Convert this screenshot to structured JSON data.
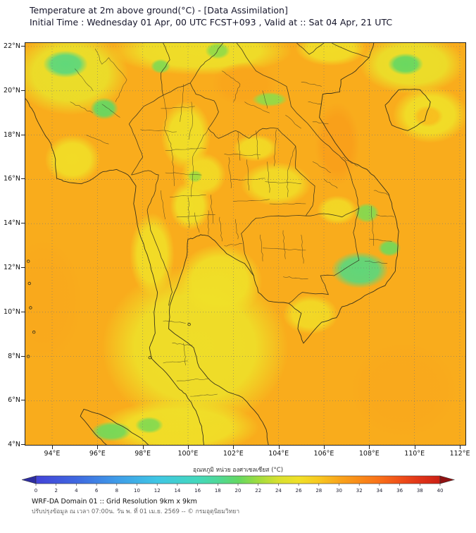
{
  "header": {
    "line1": "Temperature at 2m above ground(°C) - [Data Assimilation]",
    "line2": "Initial Time : Wednesday 01 Apr, 00 UTC FCST+093 , Valid at :: Sat 04 Apr, 21 UTC"
  },
  "axes": {
    "lat_ticks": [
      {
        "label": "22°N",
        "value": 22
      },
      {
        "label": "20°N",
        "value": 20
      },
      {
        "label": "18°N",
        "value": 18
      },
      {
        "label": "16°N",
        "value": 16
      },
      {
        "label": "14°N",
        "value": 14
      },
      {
        "label": "12°N",
        "value": 12
      },
      {
        "label": "10°N",
        "value": 10
      },
      {
        "label": "8°N",
        "value": 8
      },
      {
        "label": "6°N",
        "value": 6
      },
      {
        "label": "4°N",
        "value": 4
      }
    ],
    "lon_ticks": [
      {
        "label": "94°E",
        "value": 94
      },
      {
        "label": "96°E",
        "value": 96
      },
      {
        "label": "98°E",
        "value": 98
      },
      {
        "label": "100°E",
        "value": 100
      },
      {
        "label": "102°E",
        "value": 102
      },
      {
        "label": "104°E",
        "value": 104
      },
      {
        "label": "106°E",
        "value": 106
      },
      {
        "label": "108°E",
        "value": 108
      },
      {
        "label": "110°E",
        "value": 110
      },
      {
        "label": "112°E",
        "value": 112
      }
    ]
  },
  "colorbar": {
    "label": "อุณหภูมิ หน่วย องศาเซลเซียส (°C)",
    "min": 0,
    "max": 40,
    "ticks": [
      0,
      2,
      4,
      6,
      8,
      10,
      12,
      14,
      16,
      18,
      20,
      22,
      24,
      26,
      28,
      30,
      32,
      34,
      36,
      38,
      40
    ],
    "arrow_left_color": "#2e2ea0",
    "arrow_right_color": "#8f1212",
    "stops": [
      {
        "v": 0,
        "c": "#4343d8"
      },
      {
        "v": 4,
        "c": "#3f68e0"
      },
      {
        "v": 8,
        "c": "#3f9ce8"
      },
      {
        "v": 12,
        "c": "#3fc6e4"
      },
      {
        "v": 16,
        "c": "#44d8bc"
      },
      {
        "v": 18,
        "c": "#4fd898"
      },
      {
        "v": 20,
        "c": "#63d863"
      },
      {
        "v": 22,
        "c": "#a0dc3f"
      },
      {
        "v": 24,
        "c": "#d8e030"
      },
      {
        "v": 26,
        "c": "#f0e028"
      },
      {
        "v": 28,
        "c": "#f8c820"
      },
      {
        "v": 30,
        "c": "#f9a51b"
      },
      {
        "v": 32,
        "c": "#f98b18"
      },
      {
        "v": 34,
        "c": "#f97018"
      },
      {
        "v": 36,
        "c": "#f05018"
      },
      {
        "v": 38,
        "c": "#e03418"
      },
      {
        "v": 40,
        "c": "#cc2015"
      }
    ]
  },
  "footer": {
    "line1": "WRF-DA Domain 01 :: Grid Resolution 9km x 9km",
    "line2": "ปรับปรุงข้อมูล ณ เวลา 07:00น. วัน พ. ที่ 01 เม.ย. 2569 -- © กรมอุตุนิยมวิทยา"
  },
  "chart_data": {
    "type": "heatmap",
    "title": "Temperature at 2m above ground(°C) - [Data Assimilation]",
    "subtitle": "Initial Time : Wednesday 01 Apr, 00 UTC FCST+093 , Valid at :: Sat 04 Apr, 21 UTC",
    "x_axis": {
      "label_format": "°E",
      "ticks": [
        94,
        96,
        98,
        100,
        102,
        104,
        106,
        108,
        110,
        112
      ],
      "range": [
        92.82,
        112.25
      ]
    },
    "y_axis": {
      "label_format": "°N",
      "ticks": [
        4,
        6,
        8,
        10,
        12,
        14,
        16,
        18,
        20,
        22
      ],
      "range": [
        4.0,
        22.16
      ]
    },
    "colorbar_label": "อุณหภูมิ หน่วย องศาเซลเซียส (°C)",
    "temperature_scale_c": {
      "min": 0,
      "max": 40,
      "tick_step": 2
    },
    "base_field_temp_c": 29.6,
    "features": [
      {
        "lon": 94.6,
        "lat": 21.2,
        "rx": 0.9,
        "ry": 0.55,
        "t": 19
      },
      {
        "lon": 96.3,
        "lat": 19.2,
        "rx": 0.55,
        "ry": 0.45,
        "t": 20
      },
      {
        "lon": 98.8,
        "lat": 21.1,
        "rx": 0.4,
        "ry": 0.3,
        "t": 21
      },
      {
        "lon": 101.3,
        "lat": 21.8,
        "rx": 0.5,
        "ry": 0.35,
        "t": 21.5
      },
      {
        "lon": 103.6,
        "lat": 19.6,
        "rx": 0.7,
        "ry": 0.3,
        "t": 21.5
      },
      {
        "lon": 109.6,
        "lat": 21.2,
        "rx": 0.7,
        "ry": 0.45,
        "t": 20
      },
      {
        "lon": 100.3,
        "lat": 16.15,
        "rx": 0.3,
        "ry": 0.25,
        "t": 22
      },
      {
        "lon": 107.6,
        "lat": 11.9,
        "rx": 1.15,
        "ry": 0.75,
        "t": 19
      },
      {
        "lon": 107.9,
        "lat": 14.5,
        "rx": 0.5,
        "ry": 0.4,
        "t": 21
      },
      {
        "lon": 108.9,
        "lat": 12.9,
        "rx": 0.45,
        "ry": 0.35,
        "t": 20.5
      },
      {
        "lon": 96.6,
        "lat": 4.6,
        "rx": 0.8,
        "ry": 0.4,
        "t": 20.5
      },
      {
        "lon": 98.3,
        "lat": 4.9,
        "rx": 0.55,
        "ry": 0.35,
        "t": 21
      },
      {
        "lon": 106.6,
        "lat": 17.6,
        "rx": 0.9,
        "ry": 1.7,
        "t": 30.5
      },
      {
        "lon": 110.6,
        "lat": 18.85,
        "rx": 0.6,
        "ry": 0.45,
        "t": 28.6
      },
      {
        "lon": 93.6,
        "lat": 10.5,
        "rx": 1.6,
        "ry": 2.6,
        "t": 29.8
      },
      {
        "lon": 109.5,
        "lat": 6.5,
        "rx": 2.2,
        "ry": 2.0,
        "t": 29.8
      },
      {
        "lon": 102.5,
        "lat": 20.3,
        "rx": 1.3,
        "ry": 0.9,
        "t": 30.0
      },
      {
        "lon": 94.8,
        "lat": 20.8,
        "rx": 2.3,
        "ry": 1.7,
        "t": 25.5
      },
      {
        "lon": 100.6,
        "lat": 21.8,
        "rx": 3.6,
        "ry": 1.0,
        "t": 25.8
      },
      {
        "lon": 106.3,
        "lat": 21.9,
        "rx": 1.4,
        "ry": 0.7,
        "t": 26.2
      },
      {
        "lon": 109.9,
        "lat": 21.2,
        "rx": 2.1,
        "ry": 1.2,
        "t": 25.6
      },
      {
        "lon": 110.7,
        "lat": 18.9,
        "rx": 1.5,
        "ry": 1.15,
        "t": 26.0
      },
      {
        "lon": 99.9,
        "lat": 18.0,
        "rx": 1.0,
        "ry": 1.4,
        "t": 26.0
      },
      {
        "lon": 100.7,
        "lat": 16.2,
        "rx": 0.9,
        "ry": 0.9,
        "t": 26.4
      },
      {
        "lon": 103.0,
        "lat": 17.4,
        "rx": 0.9,
        "ry": 0.55,
        "t": 26.4
      },
      {
        "lon": 103.9,
        "lat": 15.8,
        "rx": 1.4,
        "ry": 0.9,
        "t": 26.3
      },
      {
        "lon": 94.9,
        "lat": 16.9,
        "rx": 1.1,
        "ry": 1.0,
        "t": 26.2
      },
      {
        "lon": 100.1,
        "lat": 14.8,
        "rx": 0.8,
        "ry": 1.0,
        "t": 26.0
      },
      {
        "lon": 98.4,
        "lat": 12.6,
        "rx": 0.9,
        "ry": 1.7,
        "t": 26.2
      },
      {
        "lon": 101.4,
        "lat": 11.4,
        "rx": 1.7,
        "ry": 1.5,
        "t": 26.0
      },
      {
        "lon": 100.3,
        "lat": 8.4,
        "rx": 3.7,
        "ry": 3.3,
        "t": 25.8
      },
      {
        "lon": 99.6,
        "lat": 4.8,
        "rx": 3.2,
        "ry": 1.1,
        "t": 26.0
      },
      {
        "lon": 105.4,
        "lat": 9.9,
        "rx": 1.1,
        "ry": 0.8,
        "t": 26.5
      },
      {
        "lon": 106.6,
        "lat": 14.6,
        "rx": 0.8,
        "ry": 0.6,
        "t": 26.6
      }
    ]
  }
}
